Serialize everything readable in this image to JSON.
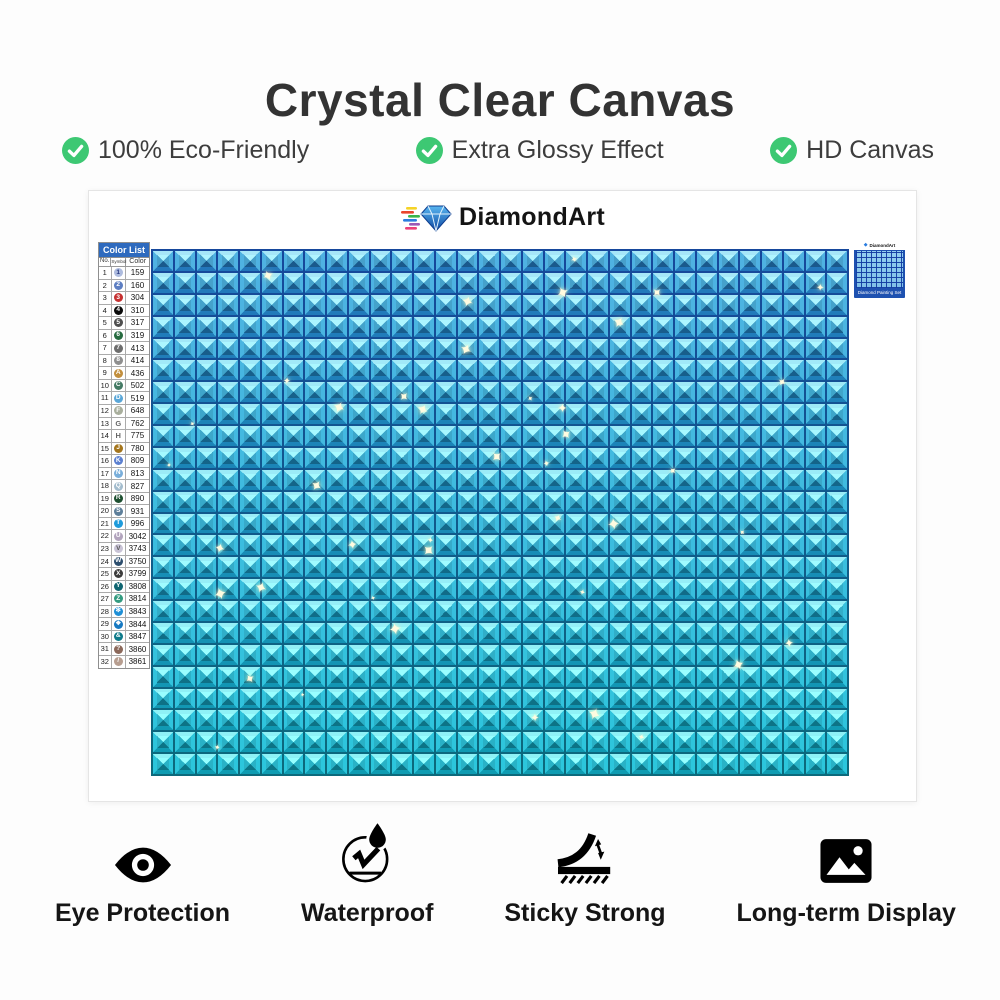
{
  "title": "Crystal Clear Canvas",
  "features": [
    {
      "label": "100% Eco-Friendly"
    },
    {
      "label": "Extra Glossy Effect"
    },
    {
      "label": "HD Canvas"
    }
  ],
  "check_color": "#3dc873",
  "brand": {
    "name": "DiamondArt"
  },
  "color_list": {
    "title": "Color List",
    "columns": [
      "No.",
      "Symbol",
      "Color"
    ],
    "rows": [
      {
        "no": "1",
        "symbol": "1",
        "code": "159",
        "bg": "#aebcdf",
        "fg": "#24367d"
      },
      {
        "no": "2",
        "symbol": "2",
        "code": "160",
        "bg": "#5d7ec2",
        "fg": "#ffffff"
      },
      {
        "no": "3",
        "symbol": "3",
        "code": "304",
        "bg": "#c53030",
        "fg": "#ffffff"
      },
      {
        "no": "4",
        "symbol": "4",
        "code": "310",
        "bg": "#0a0a0a",
        "fg": "#ffffff"
      },
      {
        "no": "5",
        "symbol": "5",
        "code": "317",
        "bg": "#4f4f4f",
        "fg": "#ffffff"
      },
      {
        "no": "6",
        "symbol": "6",
        "code": "319",
        "bg": "#276b40",
        "fg": "#ffffff"
      },
      {
        "no": "7",
        "symbol": "7",
        "code": "413",
        "bg": "#6d6d6d",
        "fg": "#ffffff"
      },
      {
        "no": "8",
        "symbol": "8",
        "code": "414",
        "bg": "#8f8f8f",
        "fg": "#ffffff"
      },
      {
        "no": "9",
        "symbol": "A",
        "code": "436",
        "bg": "#c28f3e",
        "fg": "#ffffff"
      },
      {
        "no": "10",
        "symbol": "C",
        "code": "502",
        "bg": "#447a64",
        "fg": "#ffffff"
      },
      {
        "no": "11",
        "symbol": "D",
        "code": "519",
        "bg": "#5aa7d8",
        "fg": "#ffffff"
      },
      {
        "no": "12",
        "symbol": "F",
        "code": "648",
        "bg": "#a9af9d",
        "fg": "#ffffff"
      },
      {
        "no": "13",
        "symbol": "G",
        "code": "762",
        "bg": "none",
        "fg": "#666666"
      },
      {
        "no": "14",
        "symbol": "H",
        "code": "775",
        "bg": "none",
        "fg": "#666666"
      },
      {
        "no": "15",
        "symbol": "J",
        "code": "780",
        "bg": "#a4751c",
        "fg": "#ffffff"
      },
      {
        "no": "16",
        "symbol": "K",
        "code": "809",
        "bg": "#5c80d0",
        "fg": "#ffffff"
      },
      {
        "no": "17",
        "symbol": "N",
        "code": "813",
        "bg": "#79aeda",
        "fg": "#ffffff"
      },
      {
        "no": "18",
        "symbol": "Q",
        "code": "827",
        "bg": "#a3bccd",
        "fg": "#ffffff"
      },
      {
        "no": "19",
        "symbol": "R",
        "code": "890",
        "bg": "#1d4f30",
        "fg": "#ffffff"
      },
      {
        "no": "20",
        "symbol": "S",
        "code": "931",
        "bg": "#5e7f9a",
        "fg": "#ffffff"
      },
      {
        "no": "21",
        "symbol": "T",
        "code": "996",
        "bg": "#1f9bdb",
        "fg": "#ffffff"
      },
      {
        "no": "22",
        "symbol": "U",
        "code": "3042",
        "bg": "#b2a4bd",
        "fg": "#ffffff"
      },
      {
        "no": "23",
        "symbol": "V",
        "code": "3743",
        "bg": "#c9c4d6",
        "fg": "#555555"
      },
      {
        "no": "24",
        "symbol": "W",
        "code": "3750",
        "bg": "#2c4d6d",
        "fg": "#ffffff"
      },
      {
        "no": "25",
        "symbol": "X",
        "code": "3799",
        "bg": "#3d3d3d",
        "fg": "#ffffff"
      },
      {
        "no": "26",
        "symbol": "Y",
        "code": "3808",
        "bg": "#0f6571",
        "fg": "#ffffff"
      },
      {
        "no": "27",
        "symbol": "Z",
        "code": "3814",
        "bg": "#339b80",
        "fg": "#ffffff"
      },
      {
        "no": "28",
        "symbol": "✻",
        "code": "3843",
        "bg": "#1f8fd6",
        "fg": "#ffffff"
      },
      {
        "no": "29",
        "symbol": "❖",
        "code": "3844",
        "bg": "#1779c2",
        "fg": "#ffffff"
      },
      {
        "no": "30",
        "symbol": "&",
        "code": "3847",
        "bg": "#0e7b8a",
        "fg": "#ffffff"
      },
      {
        "no": "31",
        "symbol": "?",
        "code": "3860",
        "bg": "#8b685a",
        "fg": "#ffffff"
      },
      {
        "no": "32",
        "symbol": "/",
        "code": "3861",
        "bg": "#b79e90",
        "fg": "#ffffff"
      }
    ]
  },
  "canvas": {
    "columns": 32,
    "rows": 24,
    "top": {
      "light": "#a6e6f8",
      "side": "#4fb2e2",
      "dark": "#2377bb",
      "grout": "#16489c"
    },
    "bottom": {
      "light": "#8df2f6",
      "side": "#2cc6dc",
      "dark": "#0f9cb2",
      "grout": "#0c6a7c"
    },
    "sparkles": {
      "count": 42,
      "color": "#fffbe0"
    }
  },
  "thumbnail": {
    "brand": "DiamondArt",
    "caption": "Diamond Painting Set"
  },
  "bottom_features": [
    {
      "label": "Eye Protection",
      "icon": "eye-icon"
    },
    {
      "label": "Waterproof",
      "icon": "waterproof-icon"
    },
    {
      "label": "Sticky Strong",
      "icon": "sticky-strong-icon"
    },
    {
      "label": "Long-term Display",
      "icon": "picture-icon"
    }
  ]
}
